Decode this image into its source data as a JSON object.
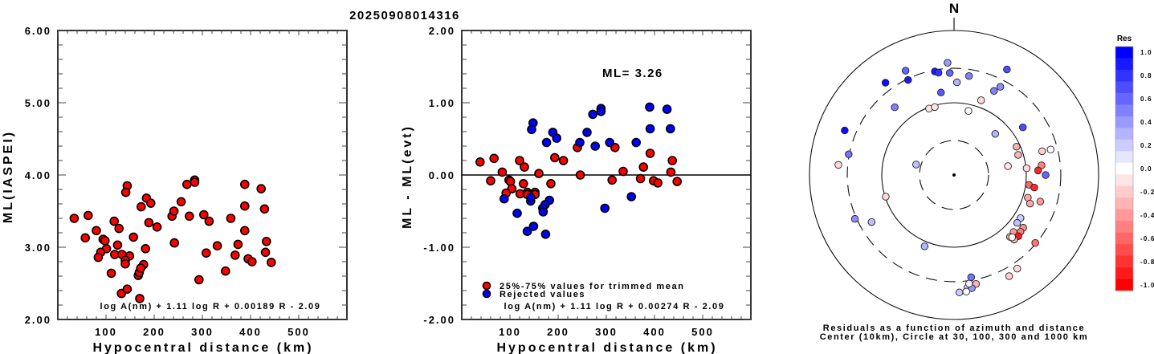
{
  "title": "20250908014316",
  "chart_data": [
    {
      "type": "scatter",
      "name": "ml-vs-distance",
      "xlabel": "Hypocentral distance (km)",
      "ylabel": "ML(IASPEI)",
      "xlim": [
        0,
        600
      ],
      "ylim": [
        2.0,
        6.0
      ],
      "xticks": [
        "100",
        "200",
        "300",
        "400",
        "500"
      ],
      "yticks": [
        "2.00",
        "3.00",
        "4.00",
        "5.00",
        "6.00"
      ],
      "annotation": "log A(nm) + 1.11 log R + 0.00189 R - 2.09",
      "marker_color": "#ff0000",
      "points": [
        [
          34,
          3.4
        ],
        [
          63,
          3.44
        ],
        [
          57,
          3.13
        ],
        [
          80,
          3.23
        ],
        [
          94,
          3.11
        ],
        [
          98,
          3.09
        ],
        [
          101,
          2.98
        ],
        [
          89,
          2.93
        ],
        [
          84,
          2.86
        ],
        [
          117,
          3.36
        ],
        [
          127,
          3.26
        ],
        [
          124,
          3.03
        ],
        [
          118,
          2.9
        ],
        [
          133,
          2.9
        ],
        [
          149,
          2.88
        ],
        [
          140,
          2.82
        ],
        [
          140,
          2.77
        ],
        [
          111,
          2.64
        ],
        [
          144,
          3.85
        ],
        [
          141,
          3.76
        ],
        [
          132,
          2.36
        ],
        [
          144,
          2.42
        ],
        [
          170,
          2.29
        ],
        [
          167,
          2.61
        ],
        [
          169,
          2.65
        ],
        [
          178,
          2.76
        ],
        [
          172,
          2.71
        ],
        [
          157,
          3.14
        ],
        [
          182,
          2.98
        ],
        [
          173,
          3.56
        ],
        [
          184,
          3.68
        ],
        [
          193,
          3.61
        ],
        [
          189,
          3.34
        ],
        [
          206,
          3.28
        ],
        [
          237,
          3.43
        ],
        [
          241,
          3.5
        ],
        [
          256,
          3.63
        ],
        [
          268,
          3.87
        ],
        [
          284,
          3.93
        ],
        [
          284,
          3.9
        ],
        [
          273,
          3.43
        ],
        [
          242,
          3.06
        ],
        [
          293,
          2.55
        ],
        [
          303,
          3.45
        ],
        [
          314,
          3.36
        ],
        [
          308,
          2.92
        ],
        [
          331,
          3.02
        ],
        [
          348,
          2.67
        ],
        [
          359,
          3.4
        ],
        [
          368,
          2.89
        ],
        [
          374,
          3.04
        ],
        [
          388,
          3.87
        ],
        [
          388,
          3.57
        ],
        [
          388,
          3.23
        ],
        [
          395,
          2.84
        ],
        [
          403,
          2.8
        ],
        [
          422,
          3.81
        ],
        [
          429,
          3.53
        ],
        [
          433,
          3.08
        ],
        [
          431,
          2.93
        ],
        [
          443,
          2.79
        ]
      ]
    },
    {
      "type": "scatter",
      "name": "residual-vs-distance",
      "xlabel": "Hypocentral distance (km)",
      "ylabel": "ML - ML(evt)",
      "xlim": [
        0,
        600
      ],
      "ylim": [
        -2.0,
        2.0
      ],
      "xticks": [
        "100",
        "200",
        "300",
        "400",
        "500"
      ],
      "yticks": [
        "-2.00",
        "-1.00",
        "0.00",
        "1.00",
        "2.00"
      ],
      "ml_label": "ML=  3.26",
      "annotation": "log A(nm) + 1.11 log R + 0.00274 R - 2.09",
      "legend": [
        {
          "label": "25%-75% values for trimmed mean",
          "color": "#ff0000"
        },
        {
          "label": "Rejected values",
          "color": "#0000ff"
        }
      ],
      "series": [
        {
          "name": "25%-75% values for trimmed mean",
          "color": "#ff0000",
          "points": [
            [
              38,
              0.18
            ],
            [
              67,
              0.23
            ],
            [
              84,
              0.04
            ],
            [
              60,
              -0.08
            ],
            [
              98,
              -0.07
            ],
            [
              101,
              -0.09
            ],
            [
              128,
              -0.12
            ],
            [
              104,
              -0.19
            ],
            [
              92,
              -0.25
            ],
            [
              121,
              -0.26
            ],
            [
              136,
              -0.24
            ],
            [
              152,
              -0.24
            ],
            [
              136,
              -0.27
            ],
            [
              152,
              -0.27
            ],
            [
              120,
              0.2
            ],
            [
              130,
              0.11
            ],
            [
              160,
              0.02
            ],
            [
              185,
              -0.12
            ],
            [
              193,
              0.24
            ],
            [
              211,
              0.2
            ],
            [
              240,
              0.38
            ],
            [
              246,
              0.0
            ],
            [
              312,
              -0.07
            ],
            [
              318,
              0.38
            ],
            [
              391,
              0.3
            ],
            [
              437,
              0.2
            ],
            [
              377,
              0.11
            ],
            [
              335,
              0.05
            ],
            [
              434,
              0.04
            ],
            [
              371,
              -0.05
            ],
            [
              398,
              -0.08
            ],
            [
              407,
              -0.11
            ],
            [
              447,
              -0.09
            ]
          ]
        },
        {
          "name": "Rejected values",
          "color": "#0000ff",
          "points": [
            [
              148,
              0.72
            ],
            [
              145,
              0.63
            ],
            [
              189,
              0.59
            ],
            [
              197,
              0.51
            ],
            [
              176,
              0.45
            ],
            [
              245,
              0.45
            ],
            [
              260,
              0.59
            ],
            [
              272,
              0.84
            ],
            [
              289,
              0.92
            ],
            [
              289,
              0.88
            ],
            [
              277,
              0.4
            ],
            [
              307,
              0.45
            ],
            [
              88,
              -0.33
            ],
            [
              115,
              -0.53
            ],
            [
              143,
              -0.36
            ],
            [
              143,
              -0.31
            ],
            [
              182,
              -0.35
            ],
            [
              173,
              -0.41
            ],
            [
              168,
              -0.46
            ],
            [
              169,
              -0.51
            ],
            [
              149,
              -0.71
            ],
            [
              136,
              -0.78
            ],
            [
              174,
              -0.82
            ],
            [
              297,
              -0.46
            ],
            [
              390,
              0.94
            ],
            [
              426,
              0.91
            ],
            [
              391,
              0.64
            ],
            [
              433,
              0.64
            ],
            [
              362,
              0.45
            ],
            [
              352,
              -0.3
            ]
          ]
        }
      ]
    },
    {
      "type": "polar-scatter",
      "name": "residual-azimuth-map",
      "north_label": "N",
      "caption_line1": "Residuals as a function of azimuth and distance",
      "caption_line2": "Center (10km), Circle at 30, 100, 300 and 1000 km",
      "center_km": 10,
      "circles_km": [
        30,
        100,
        300,
        1000
      ],
      "colorbar": {
        "title": "Res",
        "range": [
          -1.0,
          1.0
        ],
        "tick_labels": [
          "1.0",
          "0.8",
          "0.6",
          "0.4",
          "0.2",
          "0.0",
          "-0.2",
          "-0.4",
          "-0.6",
          "-0.8",
          "-1.0"
        ]
      },
      "points_az_dist_res": [
        [
          356.7,
          359,
          0.4
        ],
        [
          335.1,
          391,
          0.6
        ],
        [
          323.4,
          390,
          0.95
        ],
        [
          334.2,
          289,
          0.9
        ],
        [
          349.5,
          287,
          0.9
        ],
        [
          351.4,
          271,
          0.8
        ],
        [
          357.6,
          259,
          0.6
        ],
        [
          8.6,
          243,
          0.5
        ],
        [
          1.8,
          192,
          0.3
        ],
        [
          351.0,
          143,
          0.65
        ],
        [
          318.8,
          176,
          0.5
        ],
        [
          26.6,
          431,
          0.7
        ],
        [
          25.4,
          194,
          0.5
        ],
        [
          27.7,
          239,
          0.45
        ],
        [
          19.9,
          126,
          -0.15
        ],
        [
          339.4,
          96,
          -0.1
        ],
        [
          344.2,
          95,
          -0.1
        ],
        [
          12.7,
          81,
          0.0
        ],
        [
          55.3,
          144,
          0.7
        ],
        [
          45.0,
          64,
          0.3
        ],
        [
          65.6,
          89,
          -0.3
        ],
        [
          72.6,
          85,
          -0.3
        ],
        [
          74.9,
          183,
          -0.2
        ],
        [
          75.2,
          241,
          0.0
        ],
        [
          80.7,
          57,
          -0.1
        ],
        [
          84.7,
          102,
          -0.15
        ],
        [
          83.7,
          165,
          -0.5
        ],
        [
          86.9,
          146,
          -0.85
        ],
        [
          90.0,
          185,
          0.6
        ],
        [
          97.5,
          111,
          -0.6
        ],
        [
          98.9,
          133,
          -0.85
        ],
        [
          107.1,
          117,
          -0.35
        ],
        [
          110.6,
          133,
          -0.35
        ],
        [
          107.1,
          177,
          -0.4
        ],
        [
          123.0,
          125,
          0.2
        ],
        [
          127.2,
          125,
          0.25
        ],
        [
          127.3,
          160,
          -0.45
        ],
        [
          130.5,
          162,
          -0.5
        ],
        [
          133.8,
          138,
          -0.4
        ],
        [
          137.9,
          143,
          -0.35
        ],
        [
          133.6,
          169,
          -0.9
        ],
        [
          137.1,
          166,
          -0.3
        ],
        [
          137.0,
          151,
          0.0
        ],
        [
          129.9,
          292,
          -0.55
        ],
        [
          146.0,
          366,
          -0.15
        ],
        [
          151.4,
          393,
          -0.2
        ],
        [
          170.5,
          272,
          0.55
        ],
        [
          168.6,
          346,
          -0.3
        ],
        [
          173.2,
          372,
          0.15
        ],
        [
          171.1,
          385,
          0.4
        ],
        [
          174.0,
          420,
          0.0
        ],
        [
          177.4,
          424,
          0.2
        ],
        [
          172.1,
          330,
          0.05
        ],
        [
          275.0,
          404,
          -0.15
        ],
        [
          285.4,
          35,
          0.25
        ],
        [
          252.4,
          98,
          -0.15
        ],
        [
          246.1,
          316,
          0.45
        ],
        [
          240.3,
          206,
          0.25
        ],
        [
          202.4,
          117,
          0.3
        ],
        [
          292.2,
          430,
          0.95
        ],
        [
          281.1,
          306,
          0.55
        ]
      ]
    }
  ]
}
